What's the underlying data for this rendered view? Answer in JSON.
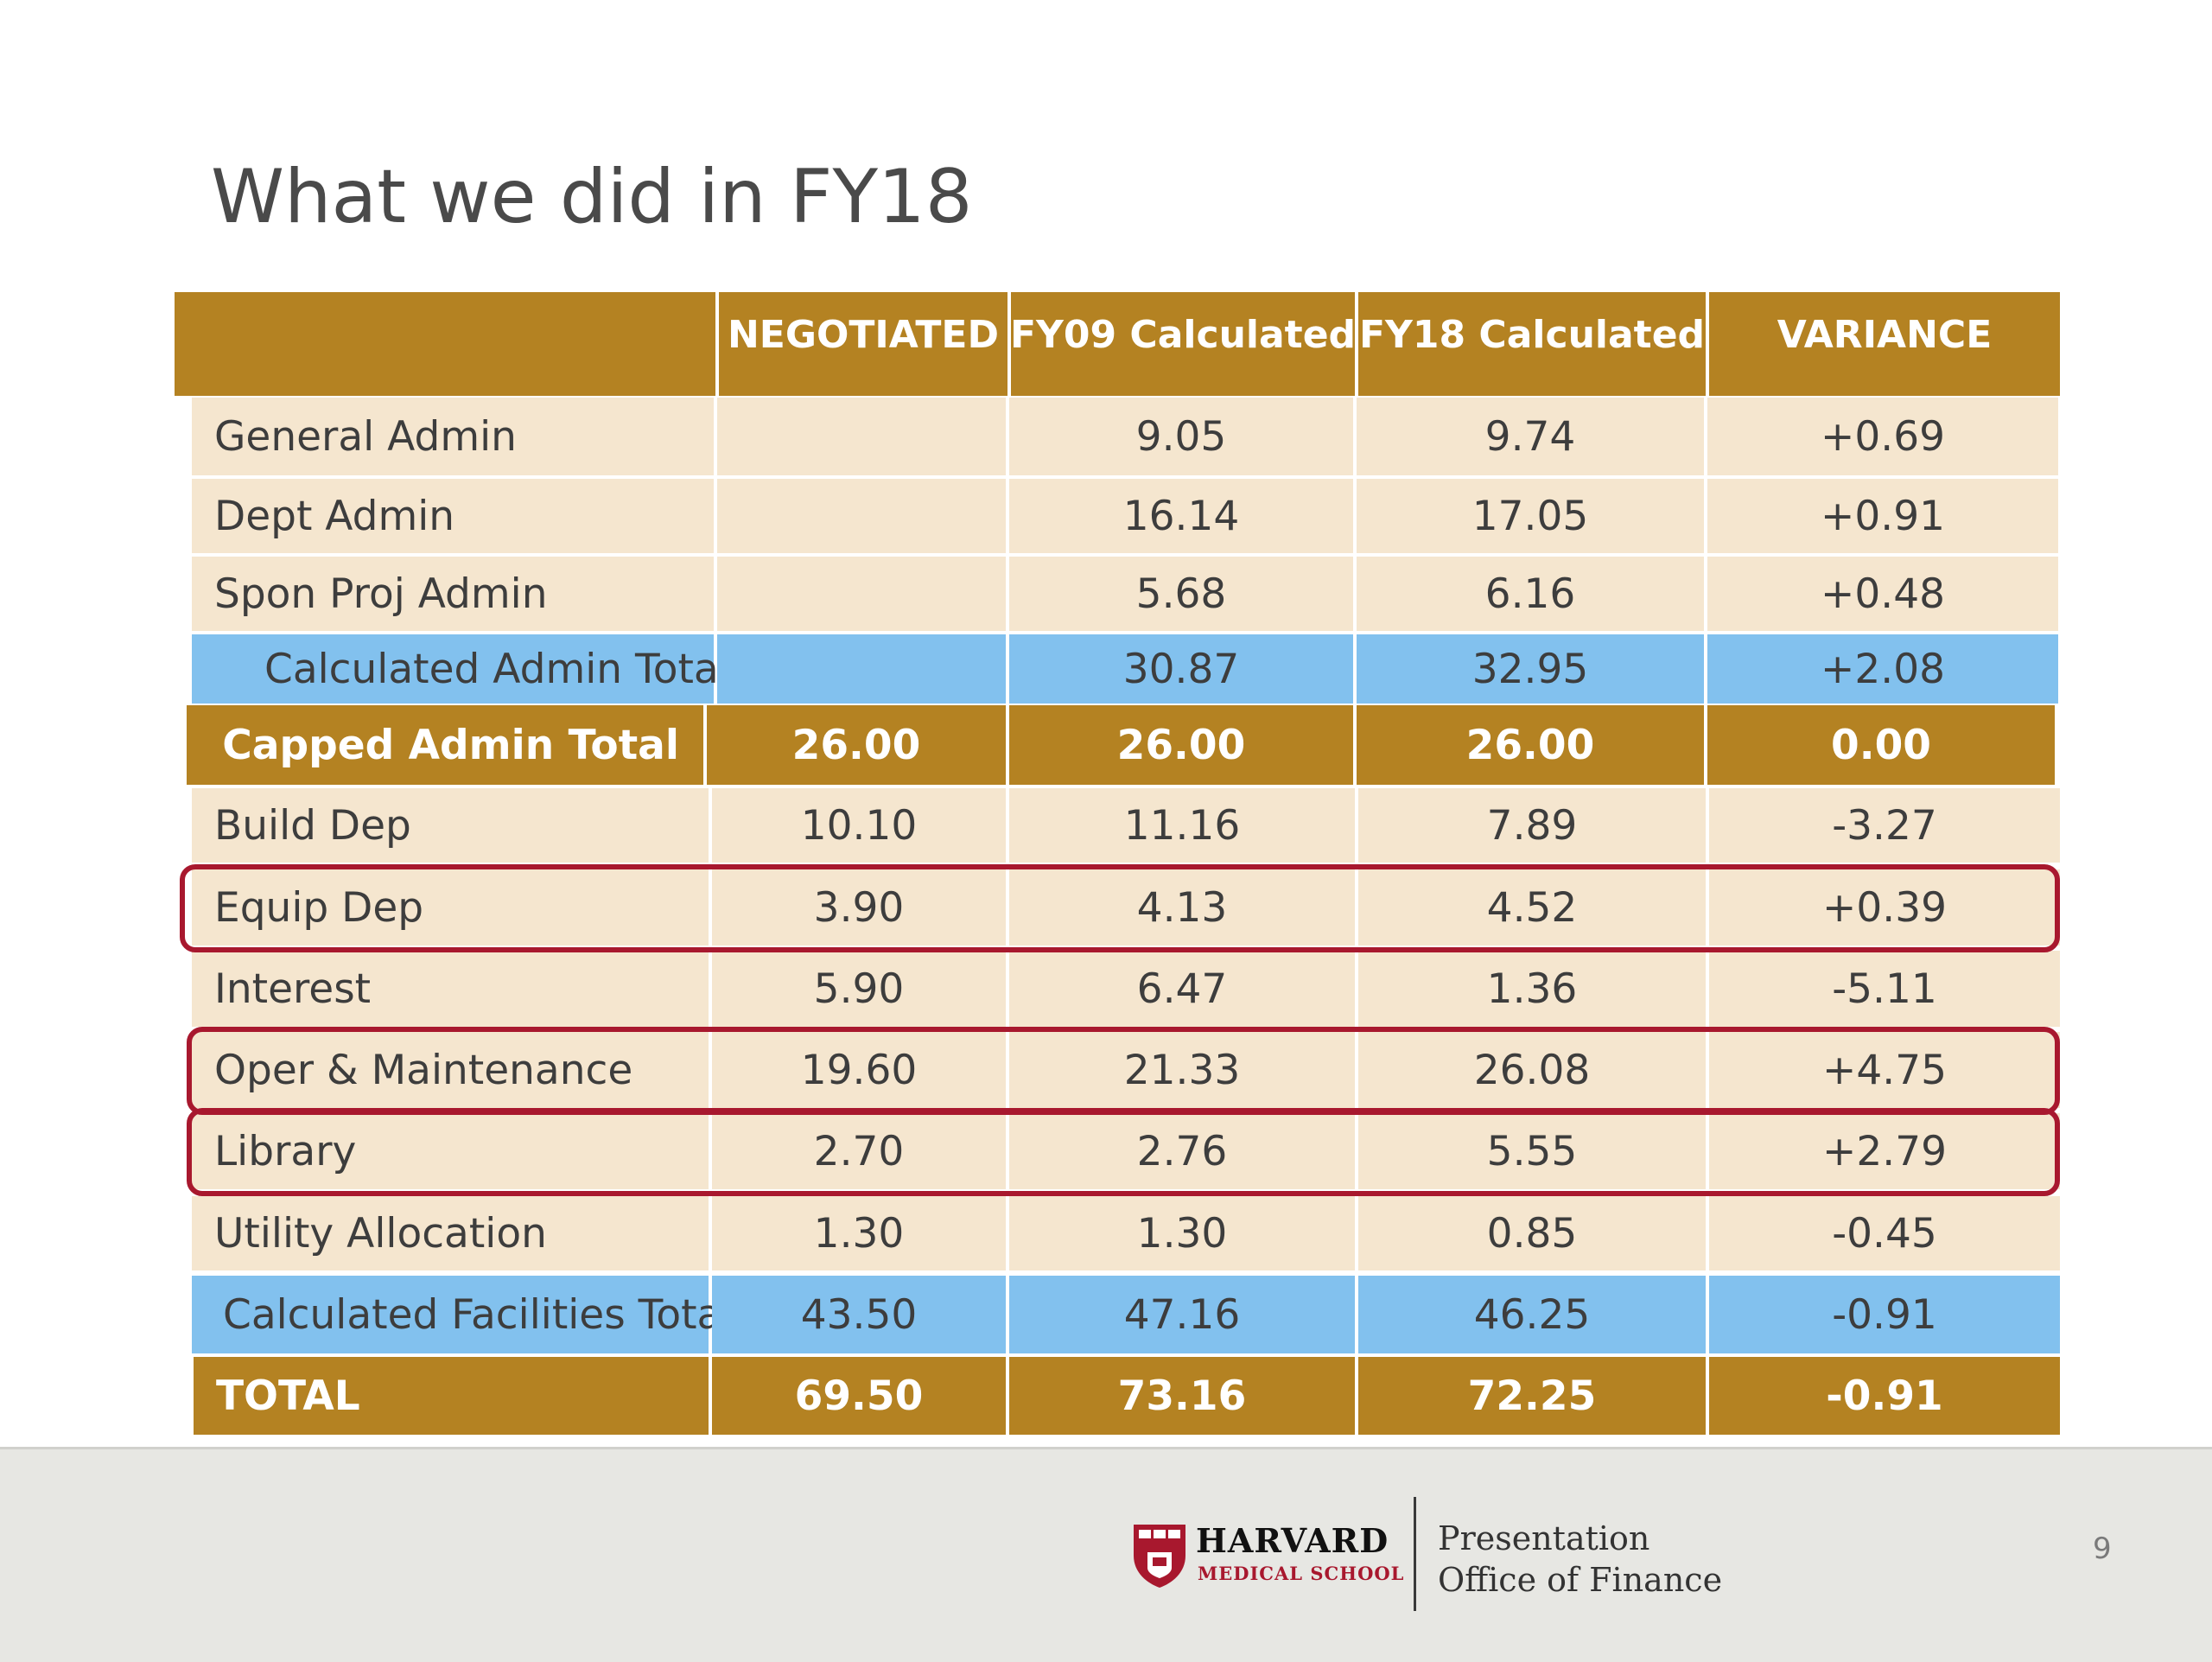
{
  "slide": {
    "title": "What we did in FY18",
    "page_number": "9"
  },
  "table": {
    "headers": [
      "",
      "NEGOTIATED",
      "FY09 Calculated",
      "FY18 Calculated",
      "VARIANCE"
    ],
    "rows": [
      {
        "label": "General Admin",
        "negotiated": "",
        "fy09": "9.05",
        "fy18": "9.74",
        "variance": "+0.69",
        "style": "cream",
        "highlighted": false
      },
      {
        "label": "Dept Admin",
        "negotiated": "",
        "fy09": "16.14",
        "fy18": "17.05",
        "variance": "+0.91",
        "style": "cream",
        "highlighted": false
      },
      {
        "label": "Spon Proj Admin",
        "negotiated": "",
        "fy09": "5.68",
        "fy18": "6.16",
        "variance": "+0.48",
        "style": "cream",
        "highlighted": false
      },
      {
        "label": "Calculated Admin Total",
        "negotiated": "",
        "fy09": "30.87",
        "fy18": "32.95",
        "variance": "+2.08",
        "style": "blue",
        "highlighted": false
      },
      {
        "label": "Capped Admin Total",
        "negotiated": "26.00",
        "fy09": "26.00",
        "fy18": "26.00",
        "variance": "0.00",
        "style": "gold",
        "highlighted": false
      },
      {
        "label": "Build Dep",
        "negotiated": "10.10",
        "fy09": "11.16",
        "fy18": "7.89",
        "variance": "-3.27",
        "style": "cream",
        "highlighted": false
      },
      {
        "label": "Equip Dep",
        "negotiated": "3.90",
        "fy09": "4.13",
        "fy18": "4.52",
        "variance": "+0.39",
        "style": "cream",
        "highlighted": true
      },
      {
        "label": "Interest",
        "negotiated": "5.90",
        "fy09": "6.47",
        "fy18": "1.36",
        "variance": "-5.11",
        "style": "cream",
        "highlighted": false
      },
      {
        "label": "Oper & Maintenance",
        "negotiated": "19.60",
        "fy09": "21.33",
        "fy18": "26.08",
        "variance": "+4.75",
        "style": "cream",
        "highlighted": true
      },
      {
        "label": "Library",
        "negotiated": "2.70",
        "fy09": "2.76",
        "fy18": "5.55",
        "variance": "+2.79",
        "style": "cream",
        "highlighted": true
      },
      {
        "label": "Utility Allocation",
        "negotiated": "1.30",
        "fy09": "1.30",
        "fy18": "0.85",
        "variance": "-0.45",
        "style": "cream",
        "highlighted": false
      },
      {
        "label": "Calculated Facilities Total",
        "negotiated": "43.50",
        "fy09": "47.16",
        "fy18": "46.25",
        "variance": "-0.91",
        "style": "blue",
        "highlighted": false
      },
      {
        "label": "TOTAL",
        "negotiated": "69.50",
        "fy09": "73.16",
        "fy18": "72.25",
        "variance": "-0.91",
        "style": "gold",
        "highlighted": false
      }
    ]
  },
  "footer": {
    "logo_name": "HARVARD",
    "logo_subtitle": "MEDICAL SCHOOL",
    "presentation_line1": "Presentation",
    "presentation_line2": "Office of Finance",
    "logo_icon": "harvard-shield-icon"
  },
  "colors": {
    "gold": "#b48222",
    "cream": "#f5e6cf",
    "blue": "#82c1ee",
    "highlight": "#a8182e"
  }
}
